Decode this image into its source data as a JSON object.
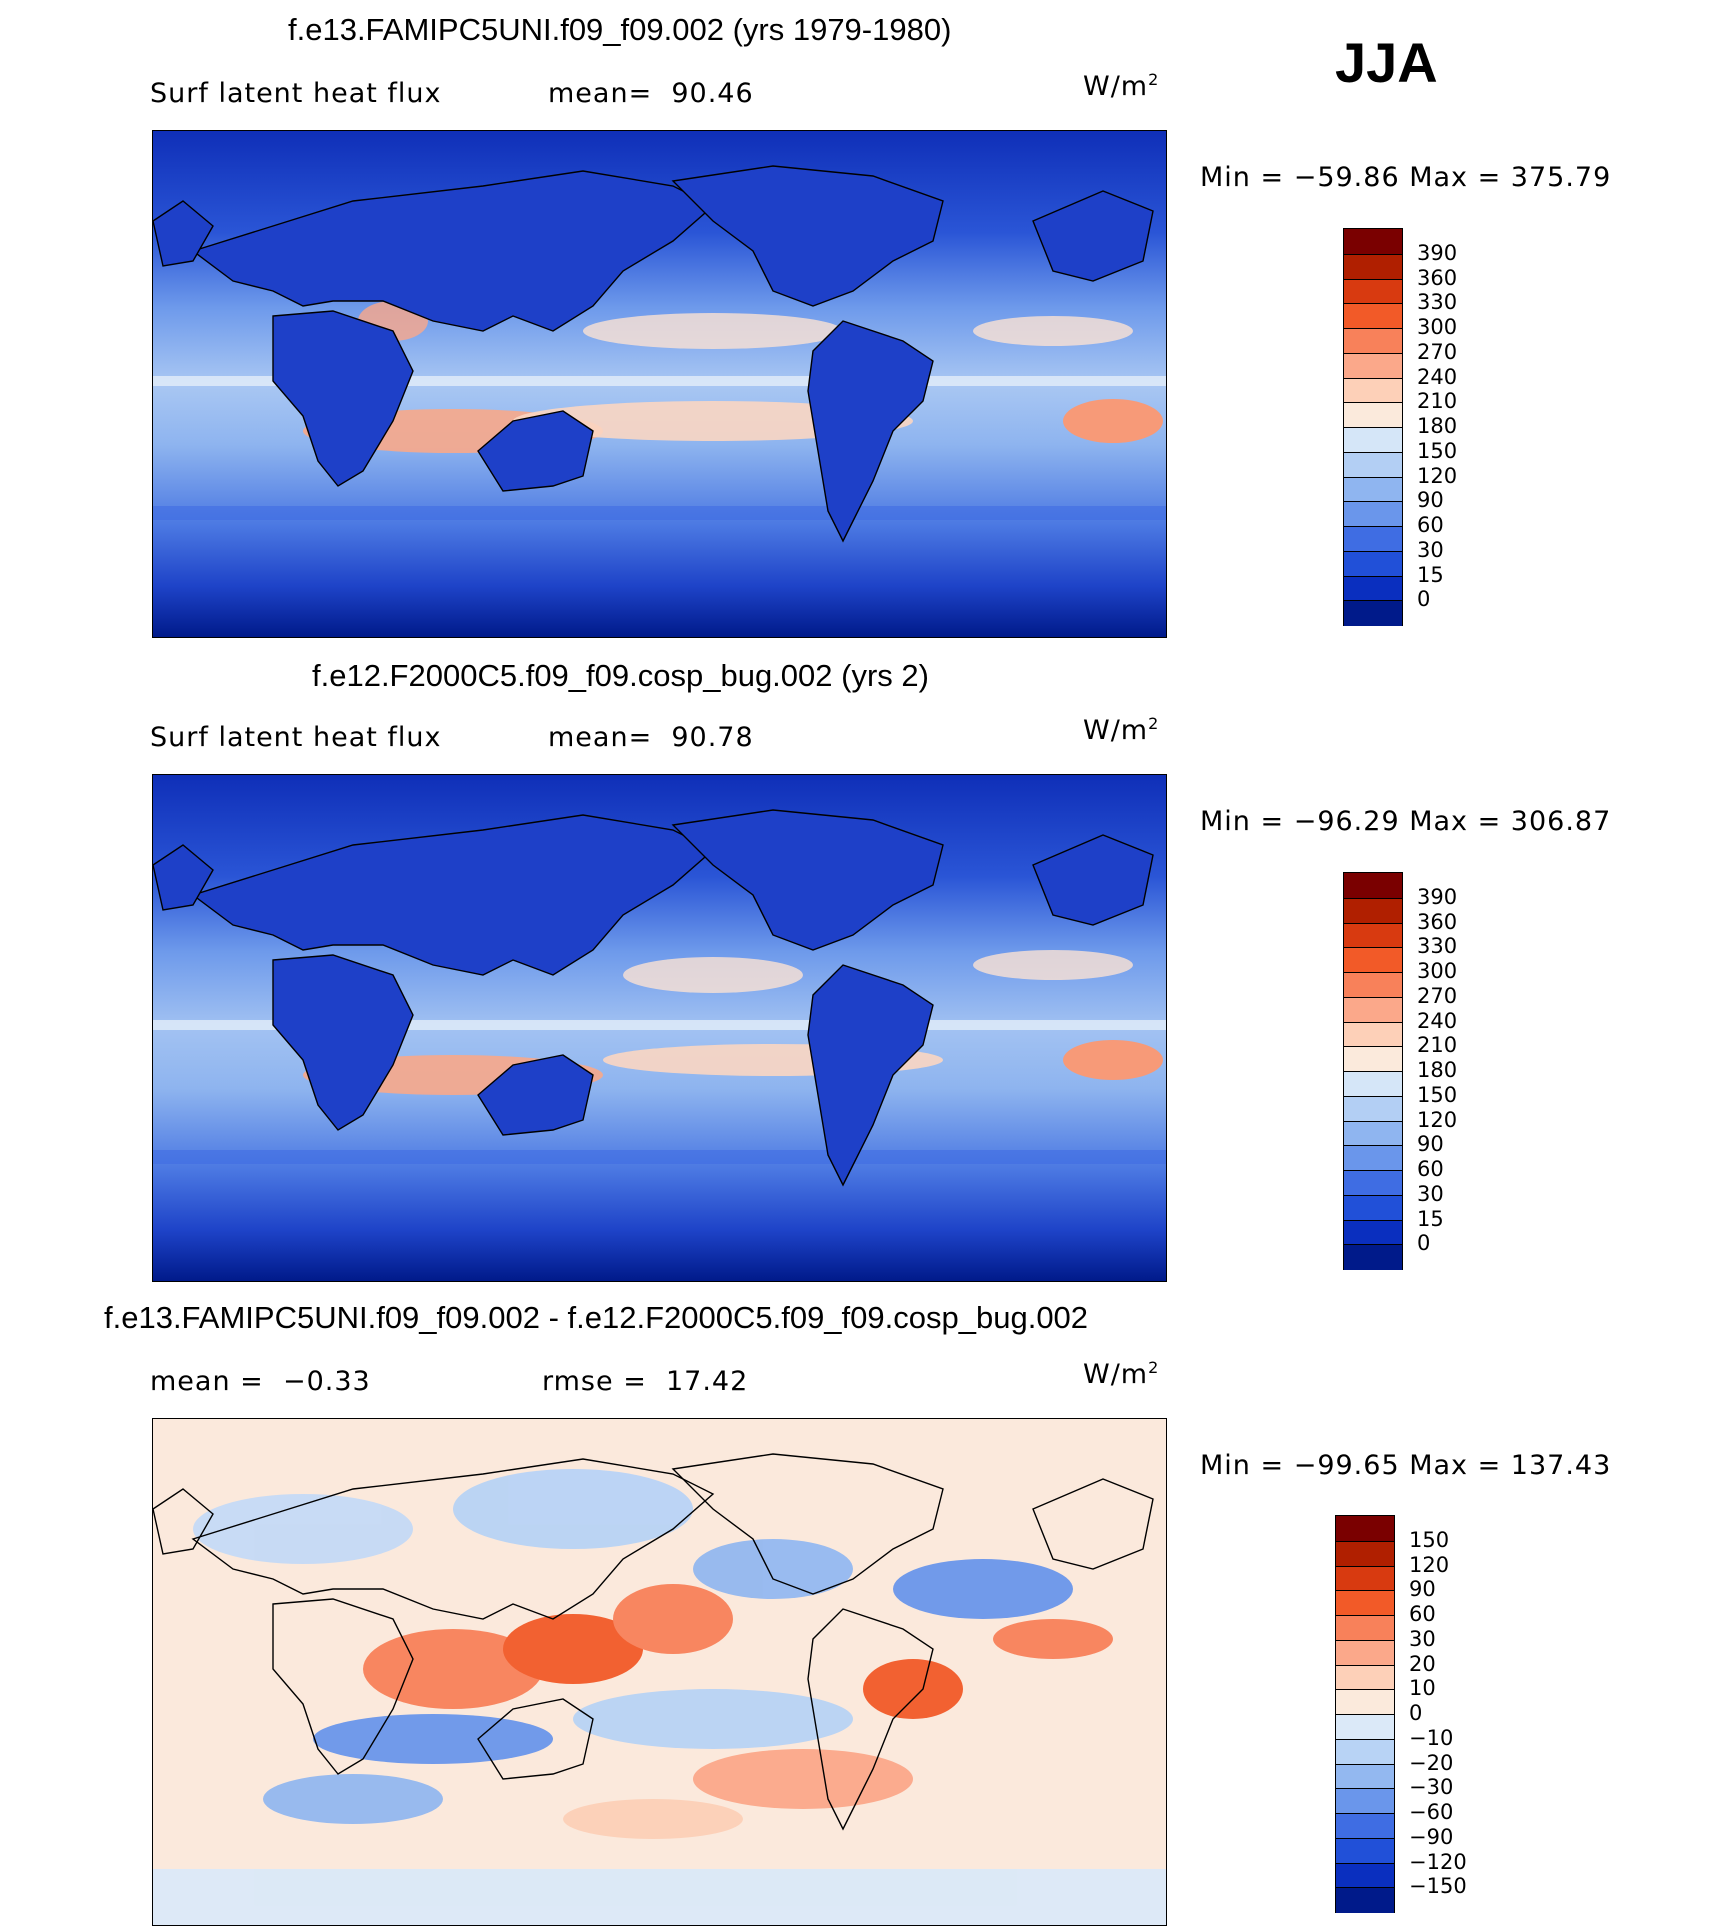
{
  "season": "JJA",
  "units": "W/m",
  "units_sup": "2",
  "panels": [
    {
      "title": "f.e13.FAMIPC5UNI.f09_f09.002 (yrs 1979-1980)",
      "left_label": "Surf latent heat flux",
      "right_label": "mean=  90.46",
      "minmax": "Min = −59.86 Max = 375.79",
      "colorbar_labels": [
        "390",
        "360",
        "330",
        "300",
        "270",
        "240",
        "210",
        "180",
        "150",
        "120",
        "90",
        "60",
        "30",
        "15",
        "0"
      ],
      "colors": [
        "#7a0000",
        "#b01f00",
        "#d83a10",
        "#f25a28",
        "#f8815a",
        "#fba88a",
        "#fdd0b8",
        "#fbeadc",
        "#d5e6f8",
        "#b3cff4",
        "#8fb5f0",
        "#6a96eb",
        "#3f6de3",
        "#2150d8",
        "#0a2fbf",
        "#001a8a"
      ]
    },
    {
      "title": "f.e12.F2000C5.f09_f09.cosp_bug.002 (yrs 2)",
      "left_label": "Surf latent heat flux",
      "right_label": "mean=  90.78",
      "minmax": "Min = −96.29 Max = 306.87",
      "colorbar_labels": [
        "390",
        "360",
        "330",
        "300",
        "270",
        "240",
        "210",
        "180",
        "150",
        "120",
        "90",
        "60",
        "30",
        "15",
        "0"
      ],
      "colors": [
        "#7a0000",
        "#b01f00",
        "#d83a10",
        "#f25a28",
        "#f8815a",
        "#fba88a",
        "#fdd0b8",
        "#fbeadc",
        "#d5e6f8",
        "#b3cff4",
        "#8fb5f0",
        "#6a96eb",
        "#3f6de3",
        "#2150d8",
        "#0a2fbf",
        "#001a8a"
      ]
    },
    {
      "title": "f.e13.FAMIPC5UNI.f09_f09.002 - f.e12.F2000C5.f09_f09.cosp_bug.002",
      "left_label": "mean =  −0.33",
      "right_label": "rmse =  17.42",
      "minmax": "Min = −99.65 Max = 137.43",
      "colorbar_labels": [
        "150",
        "120",
        "90",
        "60",
        "30",
        "20",
        "10",
        "0",
        "−10",
        "−20",
        "−30",
        "−60",
        "−90",
        "−120",
        "−150"
      ],
      "colors": [
        "#7a0000",
        "#b01f00",
        "#d83a10",
        "#f25a28",
        "#f8815a",
        "#fba88a",
        "#fdd0b8",
        "#fbeadc",
        "#dbe9f8",
        "#b8d3f5",
        "#93b8f0",
        "#6a96eb",
        "#3f6de3",
        "#2150d8",
        "#0a2fbf",
        "#001a8a"
      ]
    }
  ]
}
